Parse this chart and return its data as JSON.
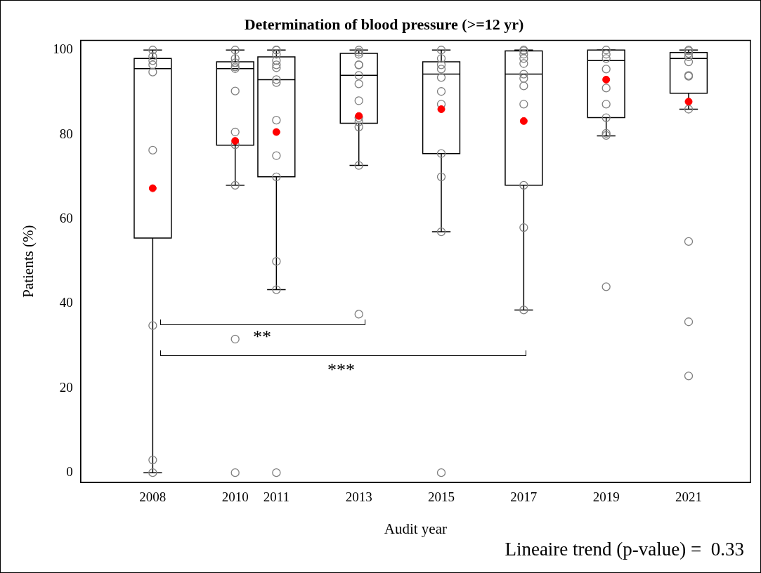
{
  "chart_data": {
    "type": "box",
    "title": "Determination of blood pressure (>=12 yr)",
    "xlabel": "Audit year",
    "ylabel": "Patients (%)",
    "x": [
      2008,
      2010,
      2011,
      2013,
      2015,
      2017,
      2019,
      2021
    ],
    "xlim": [
      2006.25,
      2022.5
    ],
    "xticks": [
      2008,
      2010,
      2011,
      2013,
      2015,
      2017,
      2019,
      2021
    ],
    "ylim": [
      -2.3,
      102.3
    ],
    "yticks": [
      0,
      20,
      40,
      60,
      80,
      100
    ],
    "grid": false,
    "legend": false,
    "marker": "circle",
    "series": [
      {
        "color": "#000000",
        "boxes": [
          {
            "low": 0,
            "q1": 55.5,
            "median": 95.6,
            "q3": 98,
            "high": 100
          },
          {
            "low": 68,
            "q1": 77.5,
            "median": 95.6,
            "q3": 97.2,
            "high": 100
          },
          {
            "low": 43.3,
            "q1": 70,
            "median": 93,
            "q3": 98.4,
            "high": 100
          },
          {
            "low": 72.7,
            "q1": 82.7,
            "median": 94,
            "q3": 99.2,
            "high": 100
          },
          {
            "low": 57,
            "q1": 75.5,
            "median": 94.3,
            "q3": 97.2,
            "high": 100
          },
          {
            "low": 38.5,
            "q1": 68,
            "median": 94.3,
            "q3": 99.8,
            "high": 100
          },
          {
            "low": 79.7,
            "q1": 84,
            "median": 97.5,
            "q3": 100,
            "high": 100
          },
          {
            "low": 86,
            "q1": 89.8,
            "median": 98,
            "q3": 99.4,
            "high": 100
          }
        ]
      },
      {
        "type": "scatter",
        "color": "#808080",
        "x": [
          2008,
          2008,
          2008,
          2008,
          2008,
          2008,
          2008,
          2008,
          2008,
          2010,
          2010,
          2010,
          2010,
          2010,
          2010,
          2010,
          2010,
          2010,
          2010,
          2010,
          2011,
          2011,
          2011,
          2011,
          2011,
          2011,
          2011,
          2011,
          2011,
          2011,
          2011,
          2011,
          2011,
          2011,
          2013,
          2013,
          2013,
          2013,
          2013,
          2013,
          2013,
          2013,
          2013,
          2013,
          2013,
          2013,
          2013,
          2015,
          2015,
          2015,
          2015,
          2015,
          2015,
          2015,
          2015,
          2015,
          2015,
          2015,
          2017,
          2017,
          2017,
          2017,
          2017,
          2017,
          2017,
          2017,
          2017,
          2017,
          2017,
          2017,
          2019,
          2019,
          2019,
          2019,
          2019,
          2019,
          2019,
          2019,
          2019,
          2019,
          2021,
          2021,
          2021,
          2021,
          2021,
          2021,
          2021,
          2021,
          2021,
          2021,
          2021
        ],
        "values": [
          100,
          98.5,
          97.5,
          96.5,
          94.8,
          76.3,
          34.8,
          3,
          0,
          100,
          98,
          97,
          96,
          95.6,
          90.3,
          80.6,
          77.6,
          68,
          31.6,
          0,
          100,
          100,
          99,
          97.5,
          96.5,
          95.8,
          93,
          92.3,
          83.4,
          75,
          70,
          50,
          43.3,
          0,
          100,
          99.5,
          99,
          96.5,
          96.5,
          94,
          92,
          88,
          84,
          83,
          81.8,
          72.7,
          37.5,
          100,
          98,
          96.5,
          95.5,
          93.5,
          90.2,
          87.2,
          75.5,
          70,
          57,
          0,
          100,
          99.8,
          99,
          98,
          96.8,
          94.3,
          93.3,
          91.5,
          87.2,
          68,
          58,
          38.5,
          100,
          99,
          98,
          95.5,
          91,
          87.2,
          84,
          80.3,
          79.8,
          44,
          100,
          99.8,
          99.2,
          98.4,
          97.2,
          94,
          93.8,
          86,
          54.7,
          35.7,
          22.9
        ]
      },
      {
        "type": "scatter",
        "color": "#ff0000",
        "x": [
          2008,
          2010,
          2011,
          2013,
          2015,
          2017,
          2019,
          2021
        ],
        "values": [
          67.3,
          78.5,
          80.6,
          84.4,
          86,
          83.2,
          93,
          87.8
        ]
      }
    ],
    "annotations": [
      "**",
      "***",
      "Lineaire trend (p-value) =  0.33"
    ]
  }
}
